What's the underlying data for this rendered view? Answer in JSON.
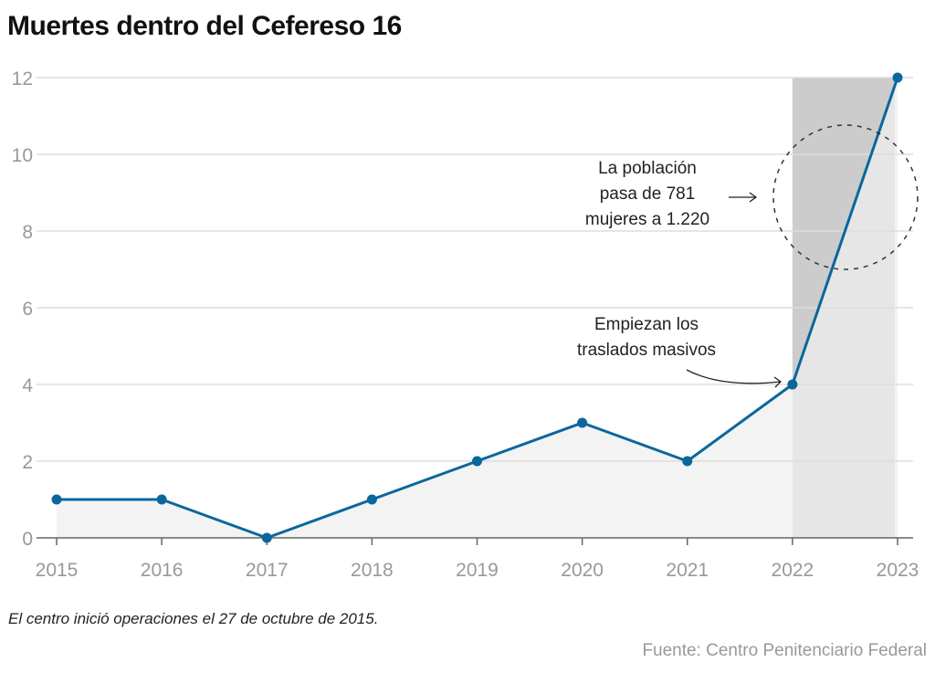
{
  "chart_data": {
    "type": "line",
    "title": "Muertes dentro del Cefereso 16",
    "x": [
      2015,
      2016,
      2017,
      2018,
      2019,
      2020,
      2021,
      2022,
      2023
    ],
    "series": [
      {
        "name": "Muertes",
        "values": [
          1,
          1,
          0,
          1,
          2,
          3,
          2,
          4,
          12
        ]
      }
    ],
    "xlabel": "",
    "ylabel": "",
    "ylim": [
      0,
      12
    ],
    "yticks": [
      0,
      2,
      4,
      6,
      8,
      10,
      12
    ],
    "xticks": [
      "2015",
      "2016",
      "2017",
      "2018",
      "2019",
      "2020",
      "2021",
      "2022",
      "2023"
    ],
    "grid": true,
    "highlight_range": [
      2022,
      2023
    ],
    "annotations": [
      {
        "lines": [
          "La población",
          "pasa de 781",
          "mujeres a 1.220"
        ],
        "target_year": 2022.5,
        "target_value": 9
      },
      {
        "lines": [
          "Empiezan los",
          "traslados masivos"
        ],
        "target_year": 2022,
        "target_value": 4
      }
    ],
    "colors": {
      "line": "#0a679c",
      "area": "#efefef",
      "highlight": "#cccccc",
      "grid": "#dddddd"
    }
  },
  "note": "El centro inició operaciones el 27 de octubre de 2015.",
  "source": "Fuente: Centro Penitenciario Federal"
}
